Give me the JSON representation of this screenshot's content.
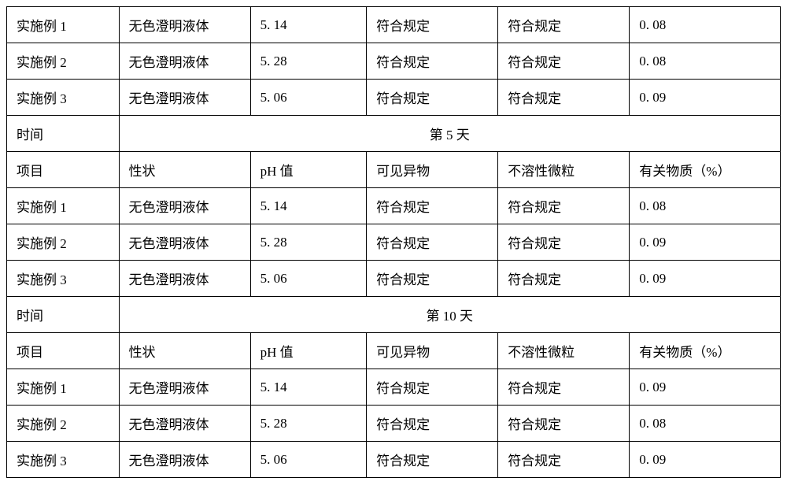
{
  "table": {
    "border_color": "#000000",
    "background_color": "#ffffff",
    "font_family": "SimSun",
    "font_size": 17,
    "column_widths_pct": [
      14.5,
      17,
      15,
      17,
      17,
      19.5
    ],
    "sections": [
      {
        "rows": [
          [
            "实施例 1",
            "无色澄明液体",
            "5. 14",
            "符合规定",
            "符合规定",
            "0. 08"
          ],
          [
            "实施例 2",
            "无色澄明液体",
            "5. 28",
            "符合规定",
            "符合规定",
            "0. 08"
          ],
          [
            "实施例 3",
            "无色澄明液体",
            "5. 06",
            "符合规定",
            "符合规定",
            "0. 09"
          ]
        ]
      },
      {
        "time_label": "时间",
        "time_value": "第 5 天",
        "header": [
          "项目",
          "性状",
          "pH 值",
          "可见异物",
          "不溶性微粒",
          "有关物质（%）"
        ],
        "rows": [
          [
            "实施例 1",
            "无色澄明液体",
            "5. 14",
            "符合规定",
            "符合规定",
            "0. 08"
          ],
          [
            "实施例 2",
            "无色澄明液体",
            "5. 28",
            "符合规定",
            "符合规定",
            "0. 09"
          ],
          [
            "实施例 3",
            "无色澄明液体",
            "5. 06",
            "符合规定",
            "符合规定",
            "0. 09"
          ]
        ]
      },
      {
        "time_label": "时间",
        "time_value": "第 10 天",
        "header": [
          "项目",
          "性状",
          "pH 值",
          "可见异物",
          "不溶性微粒",
          "有关物质（%）"
        ],
        "rows": [
          [
            "实施例 1",
            "无色澄明液体",
            "5. 14",
            "符合规定",
            "符合规定",
            "0. 09"
          ],
          [
            "实施例 2",
            "无色澄明液体",
            "5. 28",
            "符合规定",
            "符合规定",
            "0. 08"
          ],
          [
            "实施例 3",
            "无色澄明液体",
            "5. 06",
            "符合规定",
            "符合规定",
            "0. 09"
          ]
        ]
      }
    ]
  }
}
